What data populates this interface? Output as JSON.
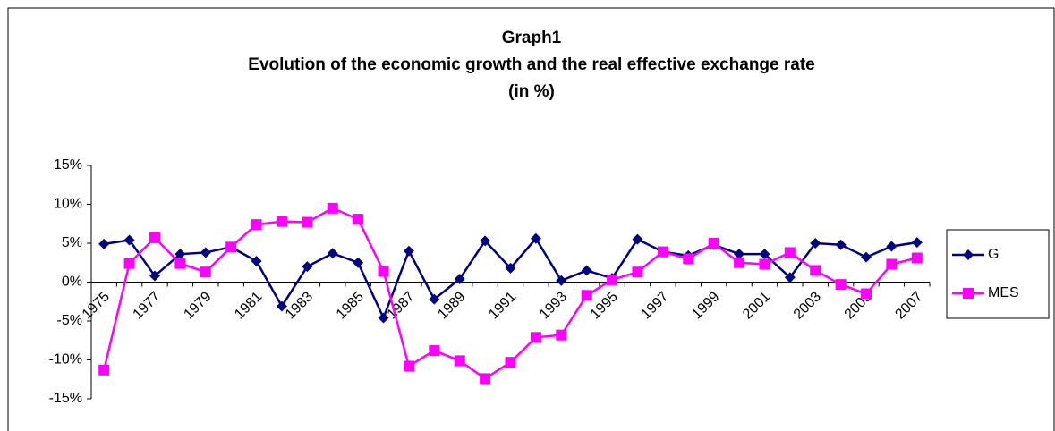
{
  "chart_data": {
    "type": "line",
    "title": [
      "Graph1",
      "Evolution of the economic growth and the real effective exchange rate",
      "(in %)"
    ],
    "categories": [
      "1975",
      null,
      "1977",
      null,
      "1979",
      null,
      "1981",
      null,
      "1983",
      null,
      "1985",
      null,
      "1987",
      null,
      "1989",
      null,
      "1991",
      null,
      "1993",
      null,
      "1995",
      null,
      "1997",
      null,
      "1999",
      null,
      "2001",
      null,
      "2003",
      null,
      "2005",
      null,
      "2007"
    ],
    "series": [
      {
        "name": "G",
        "color": "#000080",
        "marker": "diamond",
        "values": [
          4.9,
          5.4,
          0.8,
          3.6,
          3.8,
          4.5,
          2.7,
          -3.1,
          2.0,
          3.7,
          2.5,
          -4.6,
          4.0,
          -2.2,
          0.4,
          5.3,
          1.8,
          5.6,
          0.2,
          1.5,
          0.5,
          5.5,
          3.9,
          3.4,
          4.8,
          3.6,
          3.6,
          0.6,
          5.0,
          4.8,
          3.2,
          4.6,
          5.1
        ]
      },
      {
        "name": "MES",
        "color": "#ff00ff",
        "marker": "square",
        "values": [
          -11.3,
          2.4,
          5.7,
          2.4,
          1.3,
          4.5,
          7.4,
          7.8,
          7.7,
          9.5,
          8.1,
          1.4,
          -10.8,
          -8.8,
          -10.1,
          -12.4,
          -10.3,
          -7.1,
          -6.8,
          -1.7,
          0.3,
          1.3,
          3.9,
          3.0,
          5.0,
          2.5,
          2.3,
          3.8,
          1.5,
          -0.3,
          -1.5,
          2.3,
          3.1
        ]
      }
    ],
    "ylim": [
      -15,
      15
    ],
    "yticks": [
      {
        "value": 15,
        "label": "15%"
      },
      {
        "value": 10,
        "label": "10%"
      },
      {
        "value": 5,
        "label": "5%"
      },
      {
        "value": 0,
        "label": "0%"
      },
      {
        "value": -5,
        "label": "-5%"
      },
      {
        "value": -10,
        "label": "-10%"
      },
      {
        "value": -15,
        "label": "-15%"
      }
    ],
    "legend": "right"
  }
}
